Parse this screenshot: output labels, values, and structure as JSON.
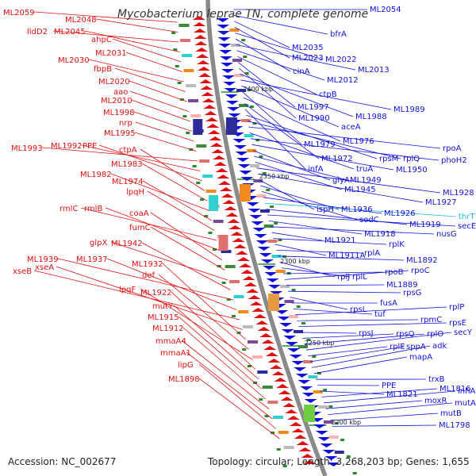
{
  "title": "Mycobacterium leprae TN, complete genome",
  "footer": {
    "accession": "Accession: NC_002677",
    "topology": "Topology: circular; Length: 3,268,203 bp; Genes: 1,655"
  },
  "colors": {
    "reverse_strand": "#e01010",
    "forward_strand": "#1010dd",
    "rna_highlight": "#22bbdd",
    "backbone": "#8a8a8a",
    "scale_tick": "#2a8a2a"
  },
  "scale_labels": [
    "2400 kbp",
    "2350 kbp",
    "2300 kbp",
    "2250 kbp",
    "2200 kbp"
  ],
  "left_labels": [
    "ML2059",
    "ML2048",
    "lldD2",
    "ML2045",
    "ahpC",
    "ML2031",
    "ML2030",
    "fbpB",
    "ML2020",
    "aao",
    "ML2010",
    "ML1998",
    "nrp",
    "ML1995",
    "ML1993",
    "ML1992",
    "PPE",
    "ctpA",
    "ML1983",
    "ML1982",
    "ML1974",
    "lpqH",
    "rmlC",
    "rmlB",
    "coaA",
    "fumC",
    "glpX",
    "ML1942",
    "ML1939",
    "ML1937",
    "xseB",
    "xseA",
    "ML1932",
    "def",
    "lpqF",
    "ML1922",
    "mutY",
    "ML1915",
    "ML1912",
    "mmaA4",
    "mmaA1",
    "lipG",
    "ML1898"
  ],
  "right_labels": [
    "ML2054",
    "bfrA",
    "ML2035",
    "ML2023",
    "ML2022",
    "cinA",
    "ML2013",
    "ML2012",
    "ctpB",
    "ML1997",
    "ML1990",
    "ML1988",
    "ML1989",
    "aceA",
    "ML1979",
    "ML1976",
    "ML1972",
    "infA",
    "rpsM",
    "rplQ",
    "rpoA",
    "truA",
    "phoH2",
    "ML1950",
    "glyA",
    "ML1949",
    "ML1945",
    "ML1928",
    "ML1927",
    "ispH",
    "ML1936",
    "sodC",
    "ML1926",
    "thrT",
    "ML1919",
    "secE",
    "ML1918",
    "nusG",
    "ML1921",
    "rplK",
    "ML1911A",
    "rplA",
    "ML1892",
    "rplJ",
    "rplL",
    "rpoB",
    "rpoC",
    "ML1889",
    "rpsG",
    "rpsL",
    "fusA",
    "tuf",
    "rplP",
    "rpmC",
    "rpsE",
    "rpsJ",
    "rpsQ",
    "rplO",
    "secY",
    "rplE",
    "sppA",
    "adk",
    "mapA",
    "trxB",
    "PPE",
    "ML1821",
    "ML1816",
    "inhA",
    "moxR",
    "mutA",
    "mutB",
    "ML1798"
  ]
}
